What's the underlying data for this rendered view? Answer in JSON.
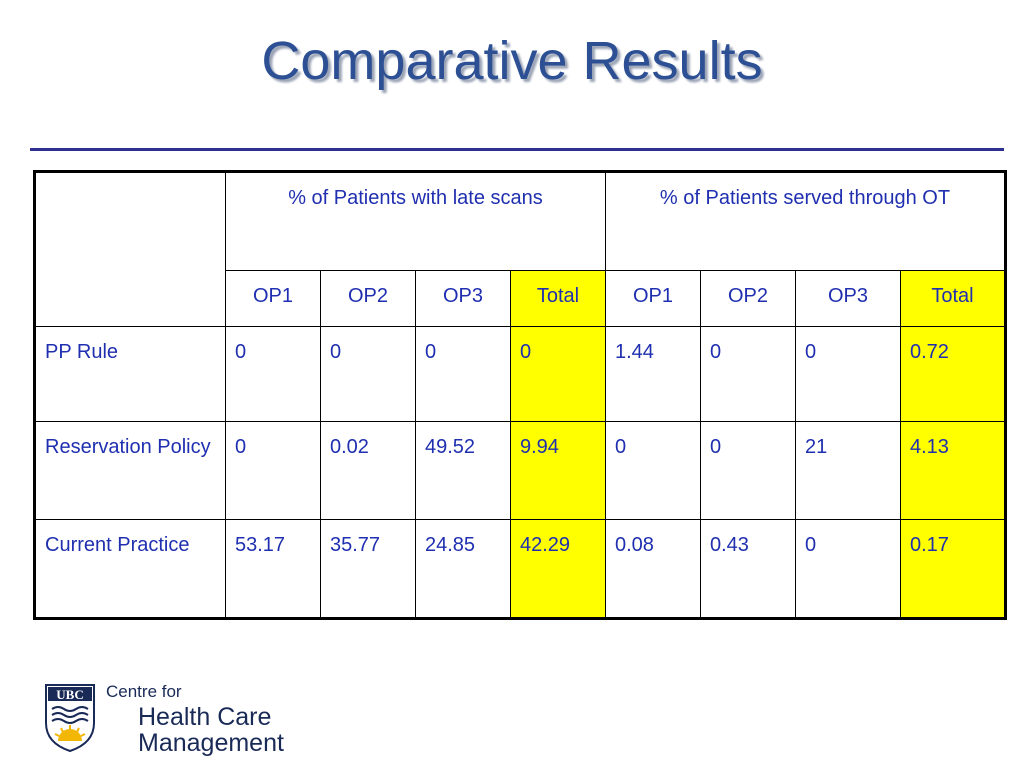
{
  "slide": {
    "title": "Comparative Results"
  },
  "table": {
    "header": {
      "group1": "% of Patients with late scans",
      "group2": "% of Patients served through OT"
    },
    "subheaders": [
      "OP1",
      "OP2",
      "OP3",
      "Total",
      "OP1",
      "OP2",
      "OP3",
      "Total"
    ],
    "rows": [
      {
        "label": "PP Rule",
        "values": [
          "0",
          "0",
          "0",
          "0",
          "1.44",
          "0",
          "0",
          "0.72"
        ]
      },
      {
        "label": "Reservation Policy",
        "values": [
          "0",
          "0.02",
          "49.52",
          "9.94",
          "0",
          "0",
          "21",
          "4.13"
        ]
      },
      {
        "label": "Current Practice",
        "values": [
          "53.17",
          "35.77",
          "24.85",
          "42.29",
          "0.08",
          "0.43",
          "0",
          "0.17"
        ]
      }
    ],
    "highlight_color": "#ffff00"
  },
  "logo": {
    "crest_text": "UBC",
    "line1": "Centre for",
    "line2": "Health Care",
    "line3": "Management"
  }
}
